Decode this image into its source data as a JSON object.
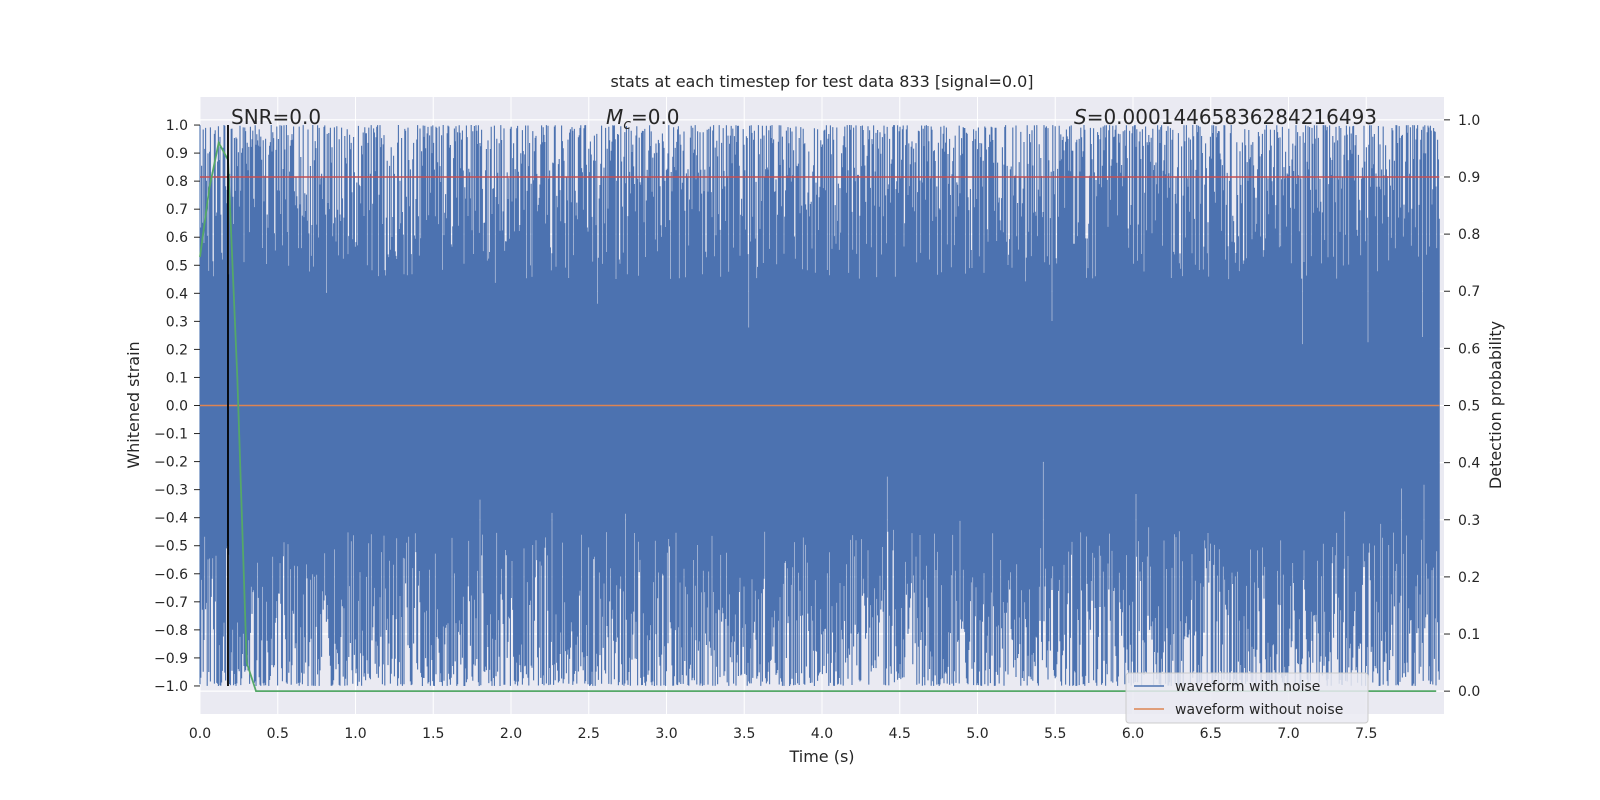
{
  "chart_data": {
    "type": "line",
    "title": "stats at each timestep for test data 833 [signal=0.0]",
    "xlabel": "Time (s)",
    "ylabel": "Whitened strain",
    "y2label": "Detection probability",
    "xlim": [
      0.0,
      8.0
    ],
    "ylim": [
      -1.1,
      1.1
    ],
    "y2lim": [
      -0.04,
      1.04
    ],
    "xticks": [
      "0.0",
      "0.5",
      "1.0",
      "1.5",
      "2.0",
      "2.5",
      "3.0",
      "3.5",
      "4.0",
      "4.5",
      "5.0",
      "5.5",
      "6.0",
      "6.5",
      "7.0",
      "7.5"
    ],
    "yticks": [
      "1.0",
      "0.9",
      "0.8",
      "0.7",
      "0.6",
      "0.5",
      "0.4",
      "0.3",
      "0.2",
      "0.1",
      "0.0",
      "−0.1",
      "−0.2",
      "−0.3",
      "−0.4",
      "−0.5",
      "−0.6",
      "−0.7",
      "−0.8",
      "−0.9",
      "−1.0"
    ],
    "y2ticks": [
      "1.0",
      "0.9",
      "0.8",
      "0.7",
      "0.6",
      "0.5",
      "0.4",
      "0.3",
      "0.2",
      "0.1",
      "0.0"
    ],
    "grid": true,
    "annotations": {
      "snr": "SNR=0.0",
      "mc_symbol": "M",
      "mc_sub": "c",
      "mc_value": "=0.0",
      "s_symbol": "S",
      "s_value": "=0.00014465836284216493"
    },
    "series": [
      {
        "name": "waveform with noise",
        "color": "#4c72b0",
        "description_range": [
          -1.0,
          1.0
        ],
        "x_range": [
          0.0,
          7.97
        ]
      },
      {
        "name": "waveform without noise",
        "color": "#dd8452",
        "x": [
          0.0,
          7.97
        ],
        "y": [
          0.0,
          0.0
        ]
      },
      {
        "name": "",
        "color": "#55a868",
        "axis": "right",
        "x": [
          0.0,
          0.06,
          0.12,
          0.18,
          0.24,
          0.3,
          0.36,
          0.42,
          7.95
        ],
        "y": [
          0.76,
          0.88,
          0.96,
          0.93,
          0.55,
          0.05,
          0.0,
          0.0,
          0.0
        ]
      }
    ],
    "hlines": [
      {
        "axis": "right",
        "y": 0.9,
        "color": "#c44e52"
      }
    ],
    "vlines": [
      {
        "x": 0.18,
        "color": "#000000"
      }
    ],
    "legend": {
      "placement": "bottom-right",
      "entries": [
        {
          "label": "waveform with noise",
          "color": "#4c72b0"
        },
        {
          "label": "waveform without noise",
          "color": "#dd8452"
        }
      ]
    },
    "colors": {
      "axes_bg": "#eaeaf2",
      "grid": "#ffffff",
      "text": "#262626"
    }
  }
}
